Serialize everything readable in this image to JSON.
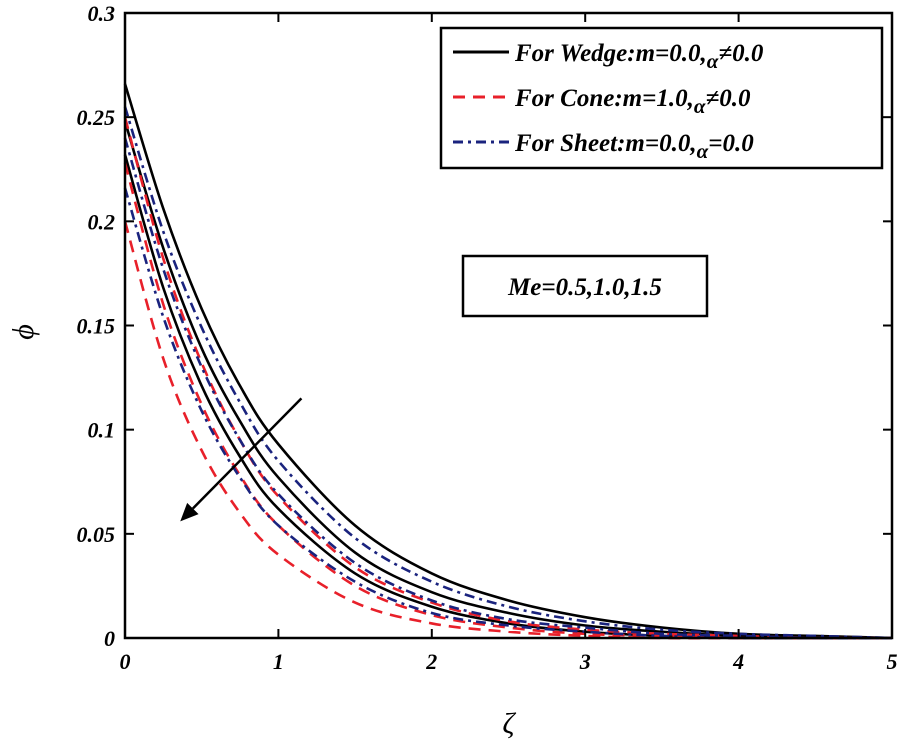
{
  "chart_data": {
    "type": "line",
    "xlabel": "ζ",
    "ylabel": "ϕ",
    "xlim": [
      0,
      5
    ],
    "ylim": [
      0,
      0.3
    ],
    "x_ticks": [
      "0",
      "1",
      "2",
      "3",
      "4",
      "5"
    ],
    "y_ticks": [
      "0",
      "0.05",
      "0.1",
      "0.15",
      "0.2",
      "0.25",
      "0.3"
    ],
    "x_tick_values": [
      0,
      1,
      2,
      3,
      4,
      5
    ],
    "y_tick_values": [
      0,
      0.05,
      0.1,
      0.15,
      0.2,
      0.25,
      0.3
    ],
    "legend": {
      "position": "top-right",
      "entries": [
        {
          "prefix": "For Wedge:m=0.0,",
          "symbol": "α",
          "suffix": "≠0.0",
          "color": "#000000",
          "style": "solid"
        },
        {
          "prefix": "For Cone:m=1.0,",
          "symbol": "α",
          "suffix": "≠0.0",
          "color": "#e8202a",
          "style": "dashed"
        },
        {
          "prefix": "For Sheet:m=0.0,",
          "symbol": "α",
          "suffix": "=0.0",
          "color": "#1a237e",
          "style": "dashdot"
        }
      ]
    },
    "annotation": {
      "text": "Me=0.5,1.0,1.5",
      "arrow_from": [
        1.15,
        0.115
      ],
      "arrow_to": [
        0.36,
        0.056
      ]
    },
    "series": [
      {
        "group": 0,
        "x": [
          0,
          0.25,
          0.5,
          0.75,
          1,
          1.5,
          2,
          2.5,
          3,
          3.5,
          4,
          4.5,
          5
        ],
        "y": [
          0.266,
          0.206,
          0.158,
          0.121,
          0.093,
          0.054,
          0.031,
          0.018,
          0.01,
          0.005,
          0.002,
          0.001,
          0
        ]
      },
      {
        "group": 0,
        "x": [
          0,
          0.25,
          0.5,
          0.75,
          1,
          1.5,
          2,
          2.5,
          3,
          3.5,
          4,
          4.5,
          5
        ],
        "y": [
          0.248,
          0.187,
          0.139,
          0.104,
          0.077,
          0.041,
          0.022,
          0.012,
          0.006,
          0.003,
          0.001,
          0,
          0
        ]
      },
      {
        "group": 0,
        "x": [
          0,
          0.25,
          0.5,
          0.75,
          1,
          1.5,
          2,
          2.5,
          3,
          3.5,
          4,
          4.5,
          5
        ],
        "y": [
          0.232,
          0.168,
          0.121,
          0.087,
          0.062,
          0.031,
          0.015,
          0.007,
          0.003,
          0.001,
          0,
          0,
          0
        ]
      },
      {
        "group": 1,
        "x": [
          0,
          0.25,
          0.5,
          0.75,
          1,
          1.5,
          2,
          2.5,
          3,
          3.5,
          4,
          4.5,
          5
        ],
        "y": [
          0.25,
          0.182,
          0.132,
          0.095,
          0.068,
          0.034,
          0.017,
          0.008,
          0.004,
          0.002,
          0.001,
          0,
          0
        ]
      },
      {
        "group": 1,
        "x": [
          0,
          0.25,
          0.5,
          0.75,
          1,
          1.5,
          2,
          2.5,
          3,
          3.5,
          4,
          4.5,
          5
        ],
        "y": [
          0.228,
          0.16,
          0.112,
          0.078,
          0.054,
          0.025,
          0.011,
          0.005,
          0.002,
          0.001,
          0,
          0,
          0
        ]
      },
      {
        "group": 1,
        "x": [
          0,
          0.25,
          0.5,
          0.75,
          1,
          1.5,
          2,
          2.5,
          3,
          3.5,
          4,
          4.5,
          5
        ],
        "y": [
          0.2,
          0.134,
          0.09,
          0.06,
          0.04,
          0.017,
          0.007,
          0.003,
          0.001,
          0,
          0,
          0,
          0
        ]
      },
      {
        "group": 2,
        "x": [
          0,
          0.25,
          0.5,
          0.75,
          1,
          1.5,
          2,
          2.5,
          3,
          3.5,
          4,
          4.5,
          5
        ],
        "y": [
          0.255,
          0.195,
          0.149,
          0.113,
          0.085,
          0.048,
          0.027,
          0.015,
          0.008,
          0.004,
          0.002,
          0.001,
          0
        ]
      },
      {
        "group": 2,
        "x": [
          0,
          0.25,
          0.5,
          0.75,
          1,
          1.5,
          2,
          2.5,
          3,
          3.5,
          4,
          4.5,
          5
        ],
        "y": [
          0.24,
          0.177,
          0.13,
          0.095,
          0.069,
          0.036,
          0.018,
          0.009,
          0.005,
          0.002,
          0.001,
          0,
          0
        ]
      },
      {
        "group": 2,
        "x": [
          0,
          0.25,
          0.5,
          0.75,
          1,
          1.5,
          2,
          2.5,
          3,
          3.5,
          4,
          4.5,
          5
        ],
        "y": [
          0.216,
          0.154,
          0.109,
          0.077,
          0.054,
          0.027,
          0.012,
          0.006,
          0.003,
          0.001,
          0,
          0,
          0
        ]
      }
    ]
  }
}
